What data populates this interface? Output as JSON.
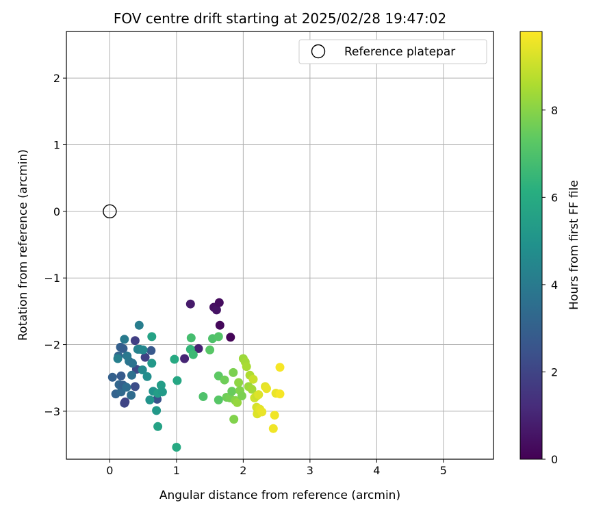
{
  "chart_data": {
    "type": "scatter",
    "title": "FOV centre drift starting at 2025/02/28 19:47:02",
    "xlabel": "Angular distance from reference (arcmin)",
    "ylabel": "Rotation from reference (arcmin)",
    "xlim": [
      -0.65,
      5.75
    ],
    "ylim": [
      -3.72,
      2.7
    ],
    "xticks": [
      0,
      1,
      2,
      3,
      4,
      5
    ],
    "yticks": [
      -3,
      -2,
      -1,
      0,
      1,
      2
    ],
    "xtick_labels": [
      "0",
      "1",
      "2",
      "3",
      "4",
      "5"
    ],
    "ytick_labels": [
      "−3",
      "−2",
      "−1",
      "0",
      "1",
      "2"
    ],
    "grid": true,
    "legend": {
      "position": "top-right",
      "entries": [
        {
          "label": "Reference platepar",
          "marker": "open-circle"
        }
      ]
    },
    "reference_point": {
      "x": 0,
      "y": 0
    },
    "colorbar": {
      "label": "Hours from first FF file",
      "colormap": "viridis",
      "range": [
        0,
        9.8
      ],
      "ticks": [
        0,
        2,
        4,
        6,
        8
      ],
      "tick_labels": [
        "0",
        "2",
        "4",
        "6",
        "8"
      ]
    },
    "points": [
      {
        "x": 1.21,
        "y": -1.39,
        "t": 0.7
      },
      {
        "x": 1.56,
        "y": -1.44,
        "t": 0.4
      },
      {
        "x": 1.6,
        "y": -1.48,
        "t": 0.5
      },
      {
        "x": 1.64,
        "y": -1.37,
        "t": 0.3
      },
      {
        "x": 1.65,
        "y": -1.71,
        "t": 0.2
      },
      {
        "x": 1.81,
        "y": -1.89,
        "t": 0.1
      },
      {
        "x": 1.33,
        "y": -2.06,
        "t": 0.9
      },
      {
        "x": 1.12,
        "y": -2.21,
        "t": 1.0
      },
      {
        "x": 0.38,
        "y": -1.94,
        "t": 1.8
      },
      {
        "x": 0.53,
        "y": -2.19,
        "t": 1.9
      },
      {
        "x": 0.4,
        "y": -2.37,
        "t": 2.2
      },
      {
        "x": 0.38,
        "y": -2.63,
        "t": 2.3
      },
      {
        "x": 0.22,
        "y": -2.88,
        "t": 2.1
      },
      {
        "x": 0.71,
        "y": -2.82,
        "t": 2.5
      },
      {
        "x": 0.23,
        "y": -2.86,
        "t": 2.0
      },
      {
        "x": 0.62,
        "y": -2.09,
        "t": 2.7
      },
      {
        "x": 0.16,
        "y": -2.04,
        "t": 3.0
      },
      {
        "x": 0.13,
        "y": -2.17,
        "t": 3.2
      },
      {
        "x": 0.2,
        "y": -2.06,
        "t": 2.9
      },
      {
        "x": 0.04,
        "y": -2.49,
        "t": 3.0
      },
      {
        "x": 0.17,
        "y": -2.47,
        "t": 2.8
      },
      {
        "x": 0.09,
        "y": -2.74,
        "t": 3.1
      },
      {
        "x": 0.17,
        "y": -2.71,
        "t": 3.3
      },
      {
        "x": 0.14,
        "y": -2.6,
        "t": 3.2
      },
      {
        "x": 0.2,
        "y": -2.61,
        "t": 3.0
      },
      {
        "x": 0.25,
        "y": -2.64,
        "t": 3.5
      },
      {
        "x": 0.32,
        "y": -2.76,
        "t": 3.4
      },
      {
        "x": 0.33,
        "y": -2.46,
        "t": 3.6
      },
      {
        "x": 0.29,
        "y": -2.25,
        "t": 3.8
      },
      {
        "x": 0.34,
        "y": -2.28,
        "t": 3.7
      },
      {
        "x": 0.26,
        "y": -2.17,
        "t": 3.9
      },
      {
        "x": 0.22,
        "y": -1.92,
        "t": 4.0
      },
      {
        "x": 0.44,
        "y": -1.71,
        "t": 4.1
      },
      {
        "x": 0.12,
        "y": -2.21,
        "t": 4.2
      },
      {
        "x": 0.45,
        "y": -2.07,
        "t": 4.4
      },
      {
        "x": 0.49,
        "y": -2.38,
        "t": 4.6
      },
      {
        "x": 0.42,
        "y": -2.07,
        "t": 4.3
      },
      {
        "x": 0.5,
        "y": -2.08,
        "t": 4.5
      },
      {
        "x": 0.56,
        "y": -2.48,
        "t": 4.8
      },
      {
        "x": 0.6,
        "y": -2.83,
        "t": 5.0
      },
      {
        "x": 0.7,
        "y": -2.99,
        "t": 5.2
      },
      {
        "x": 0.65,
        "y": -2.7,
        "t": 5.0
      },
      {
        "x": 0.72,
        "y": -2.73,
        "t": 5.4
      },
      {
        "x": 0.77,
        "y": -2.61,
        "t": 5.4
      },
      {
        "x": 0.79,
        "y": -2.71,
        "t": 5.3
      },
      {
        "x": 0.63,
        "y": -2.28,
        "t": 5.2
      },
      {
        "x": 0.63,
        "y": -1.88,
        "t": 5.6
      },
      {
        "x": 0.72,
        "y": -3.23,
        "t": 5.6
      },
      {
        "x": 0.97,
        "y": -2.22,
        "t": 5.9
      },
      {
        "x": 1.01,
        "y": -2.54,
        "t": 5.8
      },
      {
        "x": 1.0,
        "y": -3.54,
        "t": 5.9
      },
      {
        "x": 1.21,
        "y": -2.07,
        "t": 6.4
      },
      {
        "x": 1.25,
        "y": -2.15,
        "t": 6.6
      },
      {
        "x": 1.22,
        "y": -1.9,
        "t": 6.8
      },
      {
        "x": 1.4,
        "y": -2.78,
        "t": 7.0
      },
      {
        "x": 1.5,
        "y": -2.08,
        "t": 7.2
      },
      {
        "x": 1.54,
        "y": -1.91,
        "t": 7.0
      },
      {
        "x": 1.63,
        "y": -1.88,
        "t": 7.1
      },
      {
        "x": 1.63,
        "y": -2.47,
        "t": 7.3
      },
      {
        "x": 1.63,
        "y": -2.83,
        "t": 7.2
      },
      {
        "x": 1.72,
        "y": -2.53,
        "t": 7.6
      },
      {
        "x": 1.75,
        "y": -2.79,
        "t": 7.6
      },
      {
        "x": 1.8,
        "y": -2.8,
        "t": 7.7
      },
      {
        "x": 1.83,
        "y": -2.7,
        "t": 7.5
      },
      {
        "x": 1.85,
        "y": -2.42,
        "t": 7.8
      },
      {
        "x": 1.86,
        "y": -3.12,
        "t": 7.9
      },
      {
        "x": 1.88,
        "y": -2.84,
        "t": 8.0
      },
      {
        "x": 1.93,
        "y": -2.57,
        "t": 8.1
      },
      {
        "x": 1.91,
        "y": -2.87,
        "t": 8.2
      },
      {
        "x": 1.95,
        "y": -2.69,
        "t": 7.9
      },
      {
        "x": 1.98,
        "y": -2.77,
        "t": 7.8
      },
      {
        "x": 2.0,
        "y": -2.21,
        "t": 8.3
      },
      {
        "x": 2.03,
        "y": -2.26,
        "t": 8.4
      },
      {
        "x": 2.05,
        "y": -2.33,
        "t": 8.5
      },
      {
        "x": 2.08,
        "y": -2.63,
        "t": 8.3
      },
      {
        "x": 2.1,
        "y": -2.46,
        "t": 8.6
      },
      {
        "x": 2.13,
        "y": -2.67,
        "t": 8.4
      },
      {
        "x": 2.15,
        "y": -2.52,
        "t": 9.0
      },
      {
        "x": 2.17,
        "y": -2.8,
        "t": 9.1
      },
      {
        "x": 2.2,
        "y": -2.94,
        "t": 9.2
      },
      {
        "x": 2.21,
        "y": -3.04,
        "t": 9.3
      },
      {
        "x": 2.2,
        "y": -2.77,
        "t": 9.0
      },
      {
        "x": 2.23,
        "y": -2.75,
        "t": 9.3
      },
      {
        "x": 2.25,
        "y": -2.97,
        "t": 9.4
      },
      {
        "x": 2.28,
        "y": -3.01,
        "t": 9.5
      },
      {
        "x": 2.33,
        "y": -2.63,
        "t": 9.4
      },
      {
        "x": 2.35,
        "y": -2.66,
        "t": 9.5
      },
      {
        "x": 2.45,
        "y": -3.26,
        "t": 9.6
      },
      {
        "x": 2.47,
        "y": -3.06,
        "t": 9.6
      },
      {
        "x": 2.49,
        "y": -2.73,
        "t": 9.5
      },
      {
        "x": 2.55,
        "y": -2.74,
        "t": 9.7
      },
      {
        "x": 2.55,
        "y": -2.34,
        "t": 9.7
      }
    ]
  }
}
